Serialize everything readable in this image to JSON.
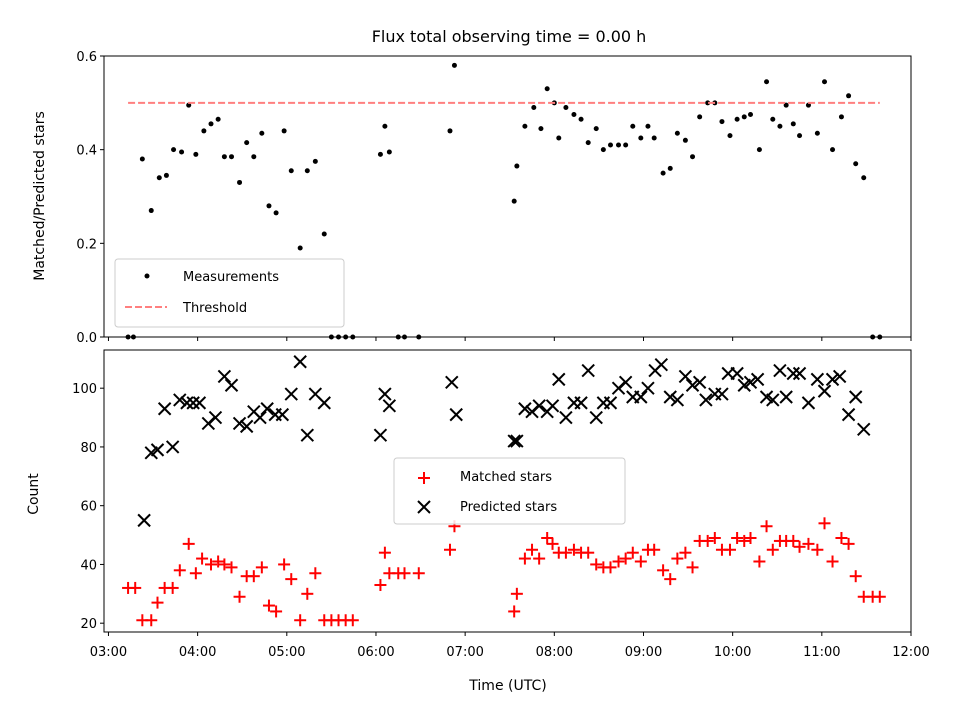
{
  "title": "Flux total observing time = 0.00 h",
  "xlabel": "Time (UTC)",
  "x_ticks": [
    "03:00",
    "04:00",
    "05:00",
    "06:00",
    "07:00",
    "08:00",
    "09:00",
    "10:00",
    "11:00",
    "12:00"
  ],
  "colors": {
    "measurements": "#000000",
    "threshold": "#ff7f7f",
    "matched": "#ff0000",
    "predicted": "#000000"
  },
  "chart_data": [
    {
      "type": "scatter",
      "ylabel": "Matched/Predicted stars",
      "xlim": [
        2.95,
        12.0
      ],
      "ylim": [
        0,
        0.6
      ],
      "y_ticks": [
        "0.0",
        "0.2",
        "0.4",
        "0.6"
      ],
      "y_tick_values": [
        0,
        0.2,
        0.4,
        0.6
      ],
      "legend_position": "lower-left",
      "series": [
        {
          "name": "Measurements",
          "marker": "dot",
          "points": [
            [
              3.22,
              0.0
            ],
            [
              3.28,
              0.0
            ],
            [
              3.38,
              0.38
            ],
            [
              3.48,
              0.27
            ],
            [
              3.57,
              0.34
            ],
            [
              3.65,
              0.345
            ],
            [
              3.73,
              0.4
            ],
            [
              3.82,
              0.395
            ],
            [
              3.9,
              0.495
            ],
            [
              3.98,
              0.39
            ],
            [
              4.07,
              0.44
            ],
            [
              4.15,
              0.455
            ],
            [
              4.23,
              0.465
            ],
            [
              4.3,
              0.385
            ],
            [
              4.38,
              0.385
            ],
            [
              4.47,
              0.33
            ],
            [
              4.55,
              0.415
            ],
            [
              4.63,
              0.385
            ],
            [
              4.72,
              0.435
            ],
            [
              4.8,
              0.28
            ],
            [
              4.88,
              0.265
            ],
            [
              4.97,
              0.44
            ],
            [
              5.05,
              0.355
            ],
            [
              5.15,
              0.19
            ],
            [
              5.23,
              0.355
            ],
            [
              5.32,
              0.375
            ],
            [
              5.42,
              0.22
            ],
            [
              5.5,
              0.0
            ],
            [
              5.58,
              0.0
            ],
            [
              5.66,
              0.0
            ],
            [
              5.74,
              0.0
            ],
            [
              6.05,
              0.39
            ],
            [
              6.1,
              0.45
            ],
            [
              6.15,
              0.395
            ],
            [
              6.25,
              0.0
            ],
            [
              6.32,
              0.0
            ],
            [
              6.48,
              0.0
            ],
            [
              6.83,
              0.44
            ],
            [
              6.88,
              0.58
            ],
            [
              7.55,
              0.29
            ],
            [
              7.58,
              0.365
            ],
            [
              7.67,
              0.45
            ],
            [
              7.77,
              0.49
            ],
            [
              7.85,
              0.445
            ],
            [
              7.92,
              0.53
            ],
            [
              8.0,
              0.5
            ],
            [
              8.05,
              0.425
            ],
            [
              8.13,
              0.49
            ],
            [
              8.22,
              0.475
            ],
            [
              8.3,
              0.465
            ],
            [
              8.38,
              0.415
            ],
            [
              8.47,
              0.445
            ],
            [
              8.55,
              0.4
            ],
            [
              8.63,
              0.41
            ],
            [
              8.72,
              0.41
            ],
            [
              8.8,
              0.41
            ],
            [
              8.88,
              0.45
            ],
            [
              8.97,
              0.425
            ],
            [
              9.05,
              0.45
            ],
            [
              9.12,
              0.425
            ],
            [
              9.22,
              0.35
            ],
            [
              9.3,
              0.36
            ],
            [
              9.38,
              0.435
            ],
            [
              9.47,
              0.42
            ],
            [
              9.55,
              0.385
            ],
            [
              9.63,
              0.47
            ],
            [
              9.72,
              0.5
            ],
            [
              9.8,
              0.5
            ],
            [
              9.88,
              0.46
            ],
            [
              9.97,
              0.43
            ],
            [
              10.05,
              0.465
            ],
            [
              10.13,
              0.47
            ],
            [
              10.2,
              0.475
            ],
            [
              10.3,
              0.4
            ],
            [
              10.38,
              0.545
            ],
            [
              10.45,
              0.465
            ],
            [
              10.53,
              0.45
            ],
            [
              10.6,
              0.495
            ],
            [
              10.68,
              0.455
            ],
            [
              10.75,
              0.43
            ],
            [
              10.85,
              0.495
            ],
            [
              10.95,
              0.435
            ],
            [
              11.03,
              0.545
            ],
            [
              11.12,
              0.4
            ],
            [
              11.22,
              0.47
            ],
            [
              11.3,
              0.515
            ],
            [
              11.38,
              0.37
            ],
            [
              11.47,
              0.34
            ],
            [
              11.57,
              0.0
            ],
            [
              11.65,
              0.0
            ]
          ]
        },
        {
          "name": "Threshold",
          "marker": "dashed-line",
          "points": [
            [
              3.22,
              0.5
            ],
            [
              11.65,
              0.5
            ]
          ]
        }
      ]
    },
    {
      "type": "scatter",
      "ylabel": "Count",
      "xlim": [
        2.95,
        12.0
      ],
      "ylim": [
        17,
        113
      ],
      "y_ticks": [
        "20",
        "40",
        "60",
        "80",
        "100"
      ],
      "y_tick_values": [
        20,
        40,
        60,
        80,
        100
      ],
      "legend_position": "center",
      "series": [
        {
          "name": "Matched stars",
          "marker": "plus",
          "points": [
            [
              3.22,
              32
            ],
            [
              3.3,
              32
            ],
            [
              3.38,
              21
            ],
            [
              3.48,
              21
            ],
            [
              3.55,
              27
            ],
            [
              3.63,
              32
            ],
            [
              3.72,
              32
            ],
            [
              3.8,
              38
            ],
            [
              3.9,
              47
            ],
            [
              3.98,
              37
            ],
            [
              4.05,
              42
            ],
            [
              4.15,
              40
            ],
            [
              4.23,
              41
            ],
            [
              4.3,
              40
            ],
            [
              4.38,
              39
            ],
            [
              4.47,
              29
            ],
            [
              4.55,
              36
            ],
            [
              4.63,
              36
            ],
            [
              4.72,
              39
            ],
            [
              4.8,
              26
            ],
            [
              4.88,
              24
            ],
            [
              4.97,
              40
            ],
            [
              5.05,
              35
            ],
            [
              5.15,
              21
            ],
            [
              5.23,
              30
            ],
            [
              5.32,
              37
            ],
            [
              5.42,
              21
            ],
            [
              5.5,
              21
            ],
            [
              5.58,
              21
            ],
            [
              5.66,
              21
            ],
            [
              5.74,
              21
            ],
            [
              6.05,
              33
            ],
            [
              6.1,
              44
            ],
            [
              6.15,
              37
            ],
            [
              6.25,
              37
            ],
            [
              6.32,
              37
            ],
            [
              6.48,
              37
            ],
            [
              6.83,
              45
            ],
            [
              6.88,
              53
            ],
            [
              7.55,
              24
            ],
            [
              7.58,
              30
            ],
            [
              7.67,
              42
            ],
            [
              7.75,
              45
            ],
            [
              7.83,
              42
            ],
            [
              7.92,
              49
            ],
            [
              7.98,
              47
            ],
            [
              8.05,
              44
            ],
            [
              8.13,
              44
            ],
            [
              8.22,
              45
            ],
            [
              8.3,
              44
            ],
            [
              8.38,
              44
            ],
            [
              8.47,
              40
            ],
            [
              8.55,
              39
            ],
            [
              8.63,
              39
            ],
            [
              8.72,
              41
            ],
            [
              8.8,
              42
            ],
            [
              8.88,
              44
            ],
            [
              8.97,
              41
            ],
            [
              9.05,
              45
            ],
            [
              9.12,
              45
            ],
            [
              9.22,
              38
            ],
            [
              9.3,
              35
            ],
            [
              9.38,
              42
            ],
            [
              9.47,
              44
            ],
            [
              9.55,
              39
            ],
            [
              9.63,
              48
            ],
            [
              9.72,
              48
            ],
            [
              9.8,
              49
            ],
            [
              9.88,
              45
            ],
            [
              9.97,
              45
            ],
            [
              10.05,
              49
            ],
            [
              10.13,
              48
            ],
            [
              10.2,
              49
            ],
            [
              10.3,
              41
            ],
            [
              10.38,
              53
            ],
            [
              10.45,
              45
            ],
            [
              10.53,
              48
            ],
            [
              10.6,
              48
            ],
            [
              10.68,
              48
            ],
            [
              10.75,
              46
            ],
            [
              10.85,
              47
            ],
            [
              10.95,
              45
            ],
            [
              11.03,
              54
            ],
            [
              11.12,
              41
            ],
            [
              11.22,
              49
            ],
            [
              11.3,
              47
            ],
            [
              11.38,
              36
            ],
            [
              11.47,
              29
            ],
            [
              11.57,
              29
            ],
            [
              11.65,
              29
            ]
          ]
        },
        {
          "name": "Predicted stars",
          "marker": "x",
          "points": [
            [
              3.4,
              55
            ],
            [
              3.48,
              78
            ],
            [
              3.55,
              79
            ],
            [
              3.63,
              93
            ],
            [
              3.72,
              80
            ],
            [
              3.8,
              96
            ],
            [
              3.88,
              95
            ],
            [
              3.95,
              95
            ],
            [
              4.02,
              95
            ],
            [
              4.12,
              88
            ],
            [
              4.2,
              90
            ],
            [
              4.3,
              104
            ],
            [
              4.38,
              101
            ],
            [
              4.47,
              88
            ],
            [
              4.55,
              87
            ],
            [
              4.63,
              92
            ],
            [
              4.7,
              90
            ],
            [
              4.78,
              93
            ],
            [
              4.87,
              91
            ],
            [
              4.95,
              91
            ],
            [
              5.05,
              98
            ],
            [
              5.15,
              109
            ],
            [
              5.23,
              84
            ],
            [
              5.32,
              98
            ],
            [
              5.42,
              95
            ],
            [
              6.05,
              84
            ],
            [
              6.1,
              98
            ],
            [
              6.15,
              94
            ],
            [
              6.85,
              102
            ],
            [
              6.9,
              91
            ],
            [
              7.55,
              82
            ],
            [
              7.58,
              82
            ],
            [
              7.67,
              93
            ],
            [
              7.75,
              92
            ],
            [
              7.83,
              94
            ],
            [
              7.92,
              92
            ],
            [
              7.98,
              94
            ],
            [
              8.05,
              103
            ],
            [
              8.13,
              90
            ],
            [
              8.22,
              95
            ],
            [
              8.3,
              95
            ],
            [
              8.38,
              106
            ],
            [
              8.47,
              90
            ],
            [
              8.55,
              95
            ],
            [
              8.63,
              95
            ],
            [
              8.72,
              100
            ],
            [
              8.8,
              102
            ],
            [
              8.88,
              97
            ],
            [
              8.97,
              97
            ],
            [
              9.05,
              100
            ],
            [
              9.13,
              106
            ],
            [
              9.2,
              108
            ],
            [
              9.3,
              97
            ],
            [
              9.38,
              96
            ],
            [
              9.47,
              104
            ],
            [
              9.55,
              101
            ],
            [
              9.63,
              102
            ],
            [
              9.7,
              96
            ],
            [
              9.8,
              98
            ],
            [
              9.88,
              98
            ],
            [
              9.95,
              105
            ],
            [
              10.05,
              105
            ],
            [
              10.13,
              101
            ],
            [
              10.2,
              102
            ],
            [
              10.28,
              103
            ],
            [
              10.38,
              97
            ],
            [
              10.45,
              96
            ],
            [
              10.53,
              106
            ],
            [
              10.6,
              97
            ],
            [
              10.68,
              105
            ],
            [
              10.75,
              105
            ],
            [
              10.85,
              95
            ],
            [
              10.95,
              103
            ],
            [
              11.03,
              99
            ],
            [
              11.12,
              103
            ],
            [
              11.2,
              104
            ],
            [
              11.3,
              91
            ],
            [
              11.38,
              97
            ],
            [
              11.47,
              86
            ]
          ]
        }
      ]
    }
  ]
}
